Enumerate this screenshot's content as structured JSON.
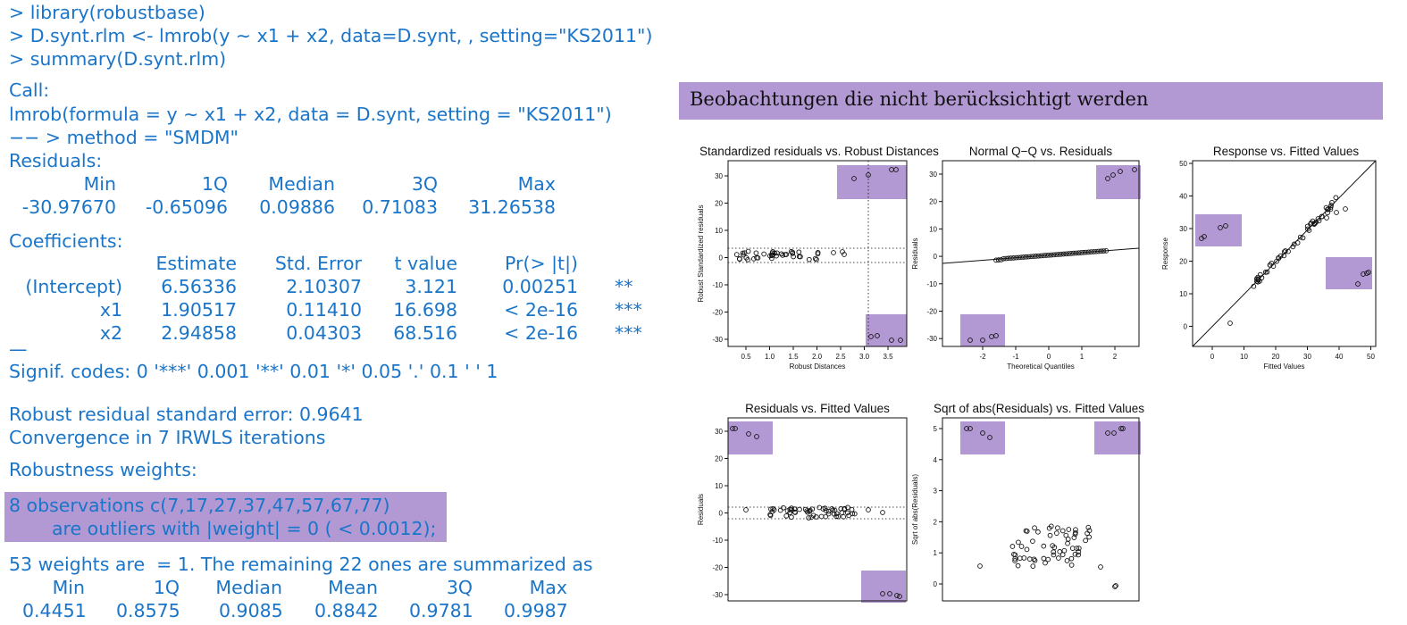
{
  "console": {
    "cmd1": "> library(robustbase)",
    "cmd2": "> D.synt.rlm <- lmrob(y ∼ x1 + x2, data=D.synt, , setting=\"KS2011\")",
    "cmd3": "> summary(D.synt.rlm)",
    "call_label": "Call:",
    "call_line": "lmrob(formula = y ∼ x1 + x2, data = D.synt, setting = \"KS2011\")",
    "method_line": "−− > method = \"SMDM\"",
    "residuals_label": "Residuals:",
    "residuals_headers": [
      "Min",
      "1Q",
      "Median",
      "3Q",
      "Max"
    ],
    "residuals_values": [
      "-30.97670",
      "-0.65096",
      "0.09886",
      "0.71083",
      "31.26538"
    ],
    "coef_label": "Coefficients:",
    "coef_headers": [
      "Estimate",
      "Std. Error",
      "t value",
      "Pr(> |t|)"
    ],
    "coef_rows": [
      {
        "name": "(Intercept)",
        "estimate": "6.56336",
        "se": "2.10307",
        "t": "3.121",
        "p": "0.00251",
        "sig": "**"
      },
      {
        "name": "x1",
        "estimate": "1.90517",
        "se": "0.11410",
        "t": "16.698",
        "p": "< 2e-16",
        "sig": "***"
      },
      {
        "name": "x2",
        "estimate": "2.94858",
        "se": "0.04303",
        "t": "68.516",
        "p": "< 2e-16",
        "sig": "***"
      }
    ],
    "dash_line": "—",
    "signif_line": "Signif. codes: 0 '***' 0.001 '**' 0.01 '*' 0.05 '.' 0.1 ' ' 1",
    "rse_line": "Robust residual standard error: 0.9641",
    "conv_line": "Convergence in 7 IRWLS iterations",
    "weights_label": "Robustness weights:",
    "outlier_line1": "8 observations c(7,17,27,37,47,57,67,77)",
    "outlier_line2": "are outliers with |weight| = 0 ( < 0.0012);",
    "weights_summary_line": "53 weights are  = 1. The remaining 22 ones are summarized as",
    "weights_headers": [
      "Min",
      "1Q",
      "Median",
      "Mean",
      "3Q",
      "Max"
    ],
    "weights_values": [
      "0.4451",
      "0.8575",
      "0.9085",
      "0.8842",
      "0.9781",
      "0.9987"
    ]
  },
  "banner": {
    "title": "Beobachtungen die nicht berücksichtigt werden"
  },
  "colors": {
    "code_text": "#1a75c9",
    "highlight": "#b399d4",
    "plot_ink": "#111111"
  },
  "plots": {
    "p1": {
      "title": "Standardized residuals vs. Robust Distances",
      "xlabel": "Robust Distances",
      "ylabel": "Robust Standardized residuals",
      "xticks": [
        "0.5",
        "1.0",
        "1.5",
        "2.0",
        "2.5",
        "3.0",
        "3.5"
      ],
      "yticks": [
        "30",
        "20",
        "10",
        "0",
        "-10",
        "-20",
        "-30"
      ]
    },
    "p2": {
      "title": "Normal Q−Q vs. Residuals",
      "xlabel": "Theoretical Quantiles",
      "ylabel": "Residuals",
      "xticks": [
        "-2",
        "-1",
        "0",
        "1",
        "2"
      ],
      "yticks": [
        "30",
        "20",
        "10",
        "0",
        "-10",
        "-20",
        "-30"
      ]
    },
    "p3": {
      "title": "Response vs. Fitted Values",
      "xlabel": "Fitted Values",
      "ylabel": "Response",
      "xticks": [
        "0",
        "10",
        "20",
        "30",
        "40",
        "50"
      ],
      "yticks": [
        "50",
        "40",
        "30",
        "20",
        "10",
        "0"
      ]
    },
    "p4": {
      "title": "Residuals vs. Fitted Values",
      "xlabel": "",
      "ylabel": "Residuals",
      "xticks": [],
      "yticks": [
        "30",
        "20",
        "10",
        "0",
        "-10",
        "-20",
        "-30"
      ]
    },
    "p5": {
      "title": "Sqrt of abs(Residuals) vs. Fitted Values",
      "xlabel": "",
      "ylabel": "Sqrt of abs(Residuals)",
      "xticks": [],
      "yticks": [
        "5",
        "4",
        "3",
        "2",
        "1",
        "0"
      ]
    }
  }
}
